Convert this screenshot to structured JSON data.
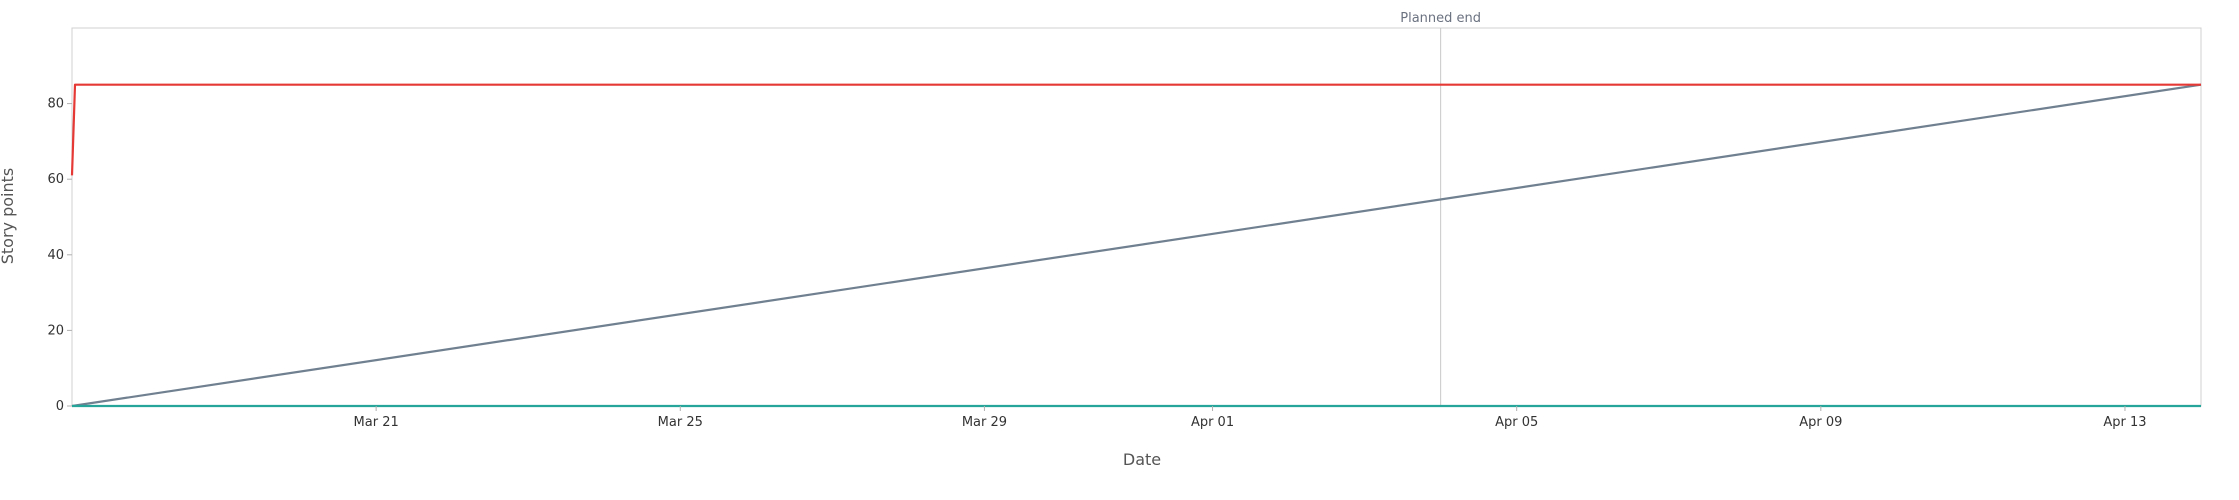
{
  "chart_data": {
    "type": "line",
    "xlabel": "Date",
    "ylabel": "Story points",
    "x_domain": [
      "2024-03-17",
      "2024-04-14"
    ],
    "ylim": [
      0,
      100
    ],
    "y_ticks": [
      0,
      20,
      40,
      60,
      80
    ],
    "x_ticks": [
      {
        "date": "2024-03-21",
        "label": "Mar 21"
      },
      {
        "date": "2024-03-25",
        "label": "Mar 25"
      },
      {
        "date": "2024-03-29",
        "label": "Mar 29"
      },
      {
        "date": "2024-04-01",
        "label": "Apr 01"
      },
      {
        "date": "2024-04-05",
        "label": "Apr 05"
      },
      {
        "date": "2024-04-09",
        "label": "Apr 09"
      },
      {
        "date": "2024-04-13",
        "label": "Apr 13"
      }
    ],
    "grid": false,
    "annotations": [
      {
        "type": "vertical-line",
        "date": "2024-04-04",
        "label": "Planned end"
      }
    ],
    "series": [
      {
        "color": "#708090",
        "points": [
          {
            "x": "2024-03-17",
            "y": 0
          },
          {
            "x": "2024-04-14",
            "y": 85
          }
        ]
      },
      {
        "color": "#e53935",
        "points": [
          {
            "x": "2024-03-17",
            "y": 61
          },
          {
            "x": "2024-03-17",
            "y": 85
          },
          {
            "x": "2024-04-14",
            "y": 85
          }
        ]
      },
      {
        "color": "#26a69a",
        "points": [
          {
            "x": "2024-03-17",
            "y": 0
          },
          {
            "x": "2024-04-14",
            "y": 0
          }
        ]
      }
    ]
  }
}
